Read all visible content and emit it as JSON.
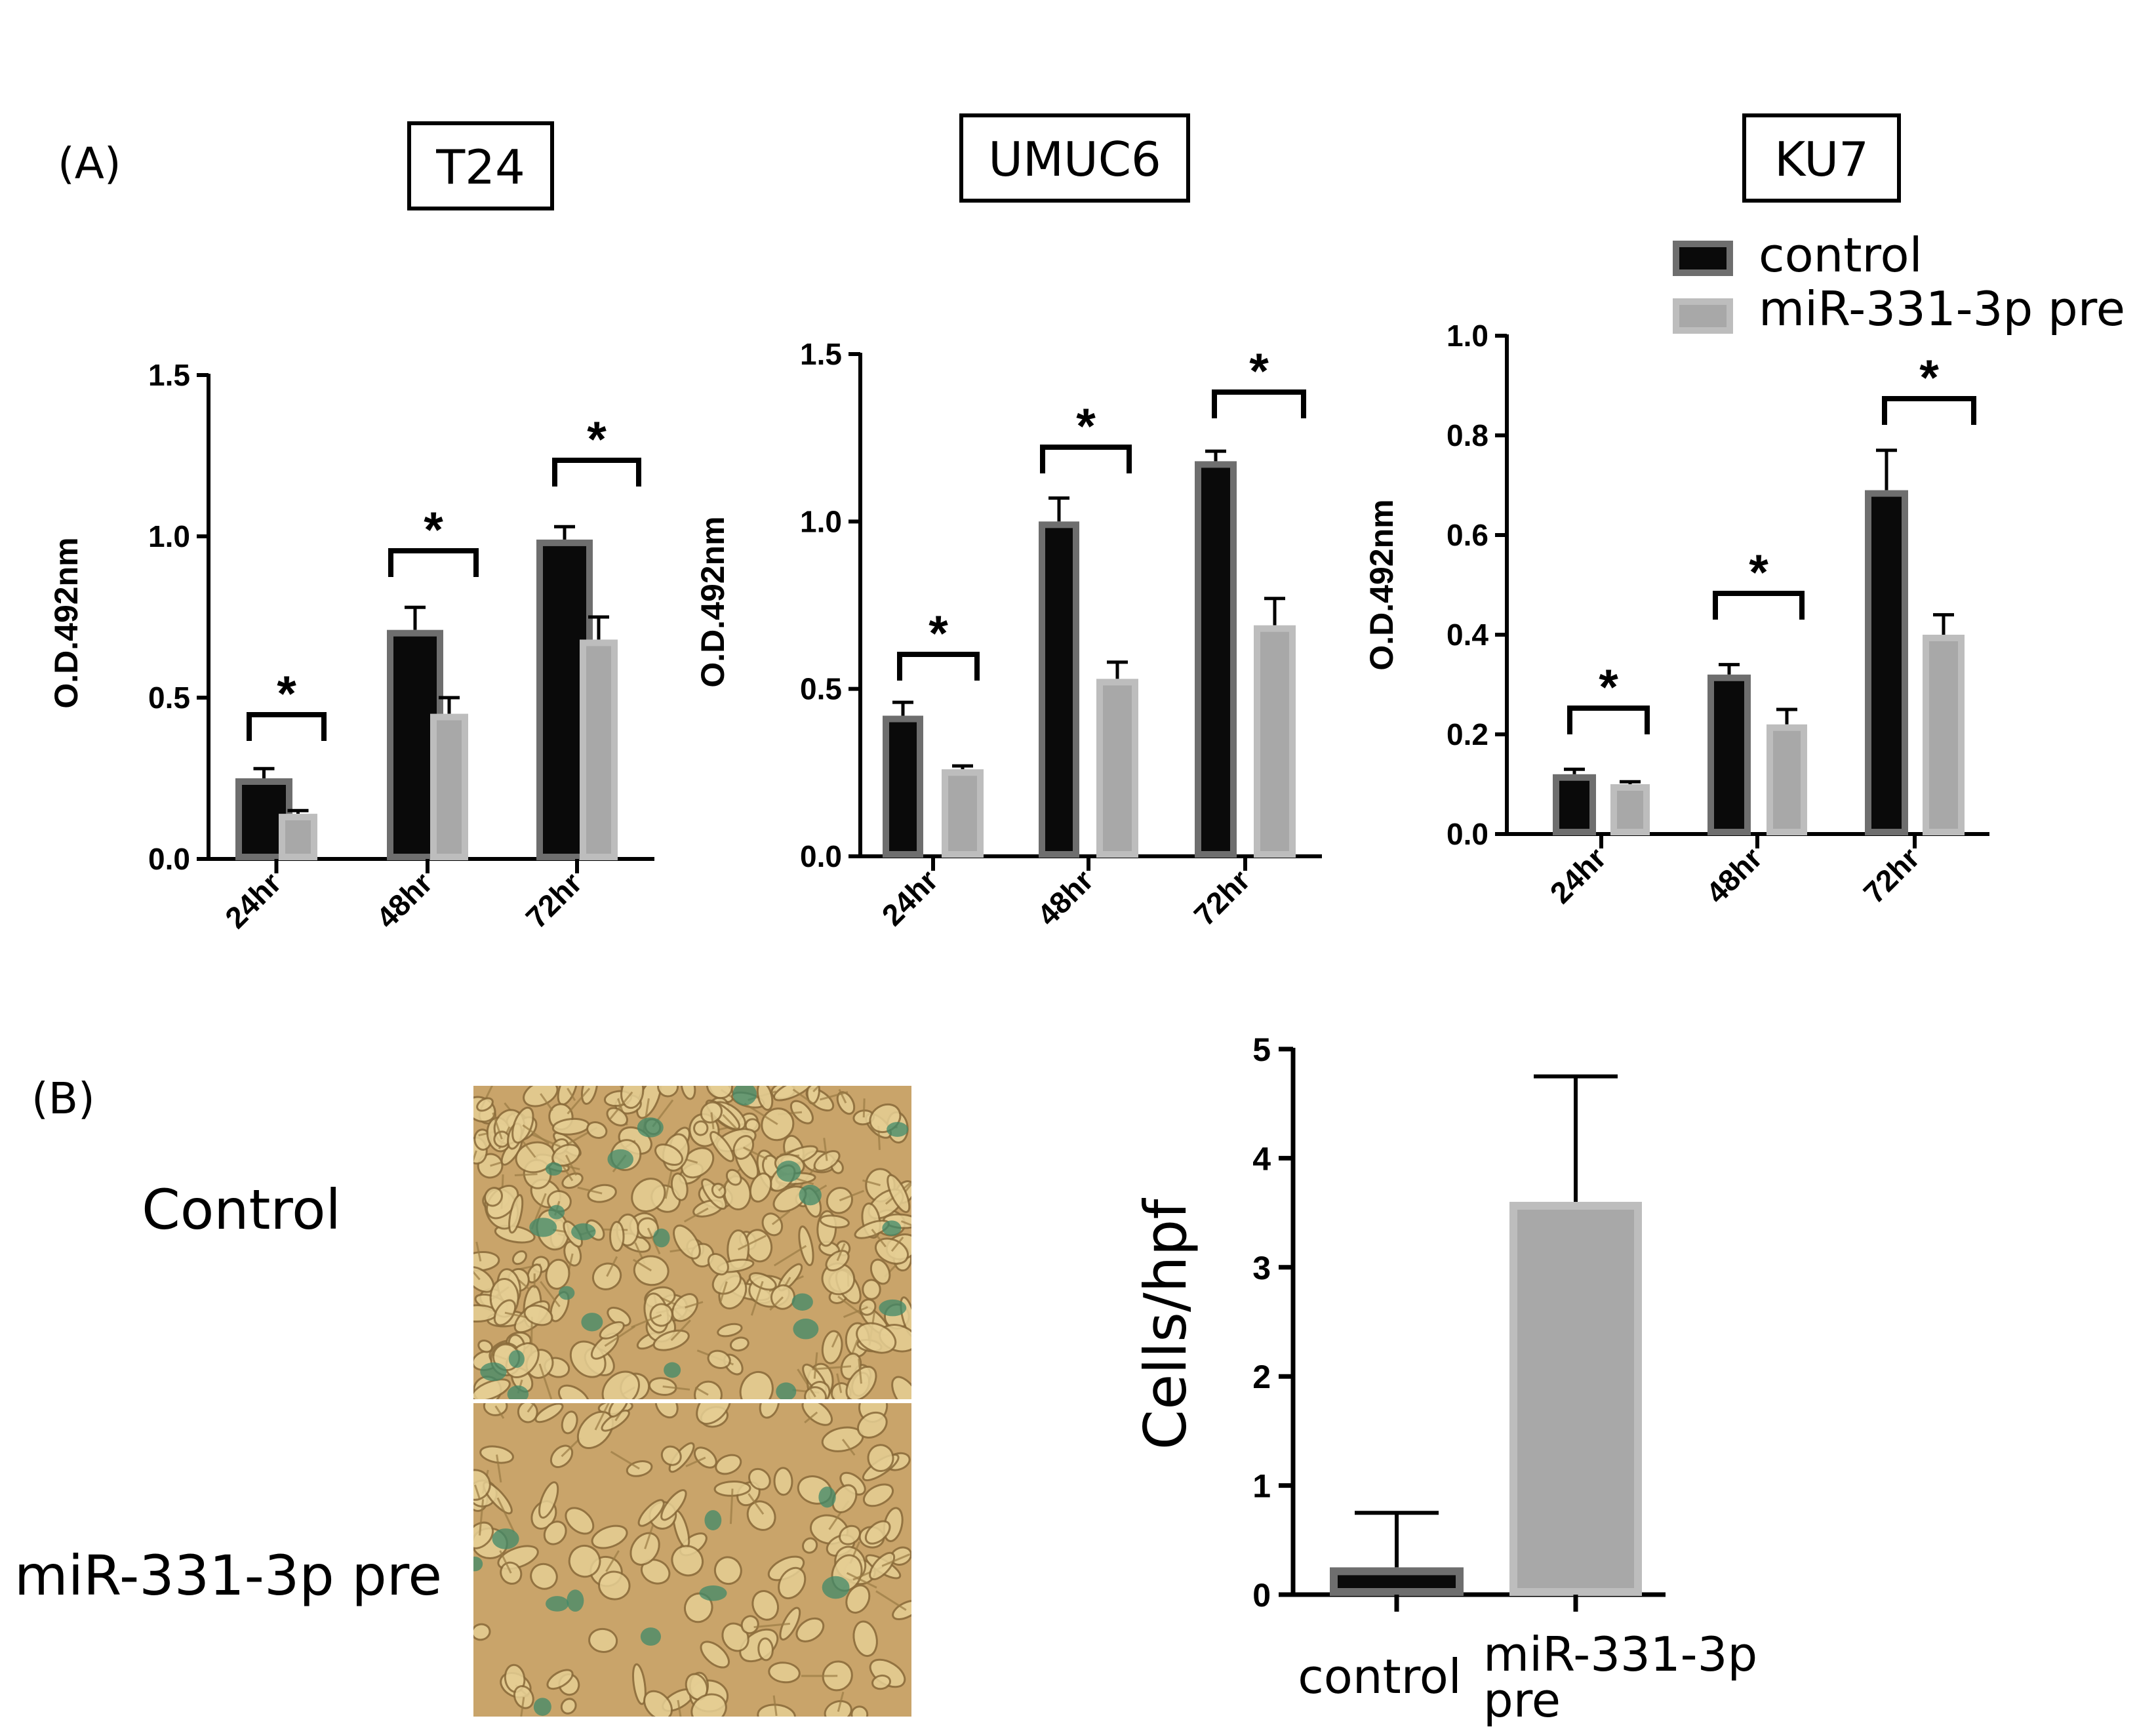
{
  "figure": {
    "panel_a_label": "(A)",
    "panel_b_label": "(B)",
    "legend": {
      "control_label": "control",
      "treated_label": "miR-331-3p pre",
      "colors": {
        "control_fill": "#0a0a0a",
        "control_edge": "#6e6e6e",
        "treated_fill": "#a8a8a8",
        "treated_edge": "#bdbdbd"
      }
    },
    "micrographs": {
      "control_label": "Control",
      "treated_label": "miR-331-3p pre",
      "background_color": "#c9a46a",
      "stain_color": "#3f8a6a"
    }
  },
  "chart_data": [
    {
      "type": "bar",
      "title": "T24",
      "ylabel": "O.D.492nm",
      "categories": [
        "24hr",
        "48hr",
        "72hr"
      ],
      "ylim": [
        0,
        1.5
      ],
      "yticks": [
        0.0,
        0.5,
        1.0,
        1.5
      ],
      "ytick_labels": [
        "0.0",
        "0.5",
        "1.0",
        "1.5"
      ],
      "series": [
        {
          "name": "control",
          "values": [
            0.25,
            0.71,
            0.99
          ],
          "errors": [
            0.03,
            0.07,
            0.04
          ]
        },
        {
          "name": "miR-331-3p pre",
          "values": [
            0.14,
            0.45,
            0.68
          ],
          "errors": [
            0.01,
            0.05,
            0.07
          ]
        }
      ],
      "significance": [
        "*",
        "*",
        "*"
      ]
    },
    {
      "type": "bar",
      "title": "UMUC6",
      "ylabel": "O.D.492nm",
      "categories": [
        "24hr",
        "48hr",
        "72hr"
      ],
      "ylim": [
        0,
        1.5
      ],
      "yticks": [
        0.0,
        0.5,
        1.0,
        1.5
      ],
      "ytick_labels": [
        "0.0",
        "0.5",
        "1.0",
        "1.5"
      ],
      "series": [
        {
          "name": "control",
          "values": [
            0.42,
            1.0,
            1.18
          ],
          "errors": [
            0.04,
            0.07,
            0.03
          ]
        },
        {
          "name": "miR-331-3p pre",
          "values": [
            0.26,
            0.53,
            0.69
          ],
          "errors": [
            0.01,
            0.05,
            0.08
          ]
        }
      ],
      "significance": [
        "*",
        "*",
        "*"
      ]
    },
    {
      "type": "bar",
      "title": "KU7",
      "ylabel": "O.D.492nm",
      "categories": [
        "24hr",
        "48hr",
        "72hr"
      ],
      "ylim": [
        0,
        1.0
      ],
      "yticks": [
        0.0,
        0.2,
        0.4,
        0.6,
        0.8,
        1.0
      ],
      "ytick_labels": [
        "0.0",
        "0.2",
        "0.4",
        "0.6",
        "0.8",
        "1.0"
      ],
      "series": [
        {
          "name": "control",
          "values": [
            0.12,
            0.32,
            0.69
          ],
          "errors": [
            0.01,
            0.02,
            0.08
          ]
        },
        {
          "name": "miR-331-3p pre",
          "values": [
            0.1,
            0.22,
            0.4
          ],
          "errors": [
            0.005,
            0.03,
            0.04
          ]
        }
      ],
      "significance": [
        "*",
        "*",
        "*"
      ]
    },
    {
      "type": "bar",
      "ylabel": "Cells/hpf",
      "categories": [
        "control",
        "miR-331-3p pre"
      ],
      "category_lines": [
        [
          "control"
        ],
        [
          "miR-331-3p",
          "pre"
        ]
      ],
      "ylim": [
        0,
        5
      ],
      "yticks": [
        0,
        1,
        2,
        3,
        4,
        5
      ],
      "ytick_labels": [
        "0",
        "1",
        "2",
        "3",
        "4",
        "5"
      ],
      "values": [
        0.25,
        3.6
      ],
      "errors": [
        0.5,
        1.15
      ]
    }
  ]
}
